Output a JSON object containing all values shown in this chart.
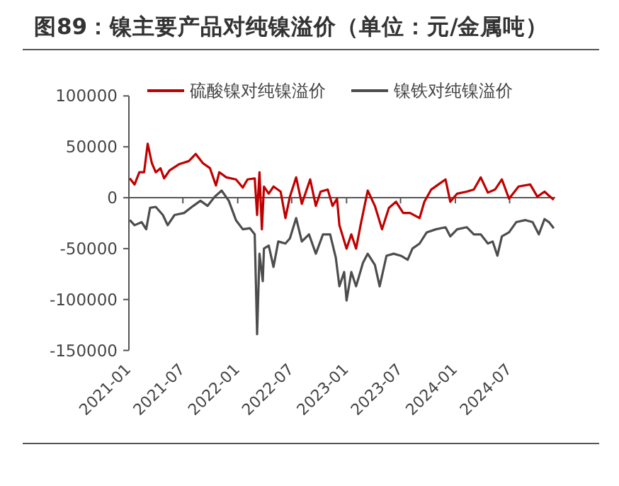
{
  "chart_data": {
    "type": "line",
    "title": "图89：镍主要产品对纯镍溢价（单位：元/金属吨）",
    "series": [
      {
        "name": "硫酸镍对纯镍溢价",
        "color": "#c00000",
        "x": [
          "2021-01-04",
          "2021-01-20",
          "2021-02-05",
          "2021-02-21",
          "2021-03-05",
          "2021-03-19",
          "2021-04-01",
          "2021-04-17",
          "2021-04-29",
          "2021-05-18",
          "2021-06-19",
          "2021-07-21",
          "2021-08-13",
          "2021-09-06",
          "2021-09-30",
          "2021-10-20",
          "2021-10-31",
          "2021-11-24",
          "2021-12-26",
          "2022-01-18",
          "2022-02-03",
          "2022-02-27",
          "2022-03-07",
          "2022-03-15",
          "2022-03-23",
          "2022-03-30",
          "2022-04-15",
          "2022-05-01",
          "2022-05-25",
          "2022-06-10",
          "2022-06-25",
          "2022-07-16",
          "2022-08-04",
          "2022-09-01",
          "2022-09-20",
          "2022-10-06",
          "2022-10-30",
          "2022-11-15",
          "2022-11-30",
          "2022-12-08",
          "2023-01-01",
          "2023-01-17",
          "2023-02-02",
          "2023-02-17",
          "2023-03-13",
          "2023-04-06",
          "2023-04-30",
          "2023-05-23",
          "2023-06-16",
          "2023-07-10",
          "2023-08-02",
          "2023-09-03",
          "2023-09-19",
          "2023-10-12",
          "2023-11-05",
          "2023-11-29",
          "2023-12-15",
          "2024-01-07",
          "2024-02-08",
          "2024-03-03",
          "2024-03-26",
          "2024-04-19",
          "2024-05-13",
          "2024-06-05",
          "2024-06-29",
          "2024-07-31",
          "2024-09-08",
          "2024-10-02",
          "2024-10-26",
          "2024-11-10",
          "2024-11-26"
        ],
        "values": [
          19000,
          13000,
          25000,
          25000,
          53000,
          34000,
          25000,
          29000,
          19000,
          27000,
          33000,
          36000,
          43000,
          34000,
          29000,
          12000,
          25000,
          20000,
          18000,
          10000,
          18000,
          19000,
          -17000,
          25000,
          -31000,
          11000,
          4000,
          11000,
          6000,
          -20000,
          1000,
          20000,
          -6000,
          18000,
          -8000,
          6000,
          8000,
          -8000,
          -1000,
          -27000,
          -50000,
          -36000,
          -50000,
          -27000,
          7000,
          -8000,
          -31000,
          -10000,
          -4000,
          -15000,
          -15000,
          -20000,
          -4000,
          8000,
          13000,
          18000,
          -4000,
          4000,
          6000,
          8000,
          20000,
          5000,
          8000,
          18000,
          -1000,
          11000,
          13000,
          1000,
          6000,
          2000,
          -2000
        ]
      },
      {
        "name": "镍铁对纯镍溢价",
        "color": "#4d4d4d",
        "x": [
          "2021-01-04",
          "2021-01-20",
          "2021-02-13",
          "2021-02-28",
          "2021-03-13",
          "2021-04-01",
          "2021-04-25",
          "2021-05-11",
          "2021-06-03",
          "2021-07-05",
          "2021-08-05",
          "2021-08-29",
          "2021-09-22",
          "2021-10-16",
          "2021-11-08",
          "2021-12-02",
          "2021-12-26",
          "2022-01-18",
          "2022-02-11",
          "2022-02-27",
          "2022-03-07",
          "2022-03-15",
          "2022-03-26",
          "2022-03-30",
          "2022-04-15",
          "2022-05-01",
          "2022-05-17",
          "2022-06-10",
          "2022-06-25",
          "2022-07-16",
          "2022-08-04",
          "2022-08-28",
          "2022-09-20",
          "2022-10-14",
          "2022-11-07",
          "2022-11-26",
          "2022-12-08",
          "2022-12-24",
          "2023-01-01",
          "2023-01-17",
          "2023-02-02",
          "2023-02-25",
          "2023-03-13",
          "2023-04-06",
          "2023-04-22",
          "2023-05-15",
          "2023-06-08",
          "2023-07-02",
          "2023-07-25",
          "2023-08-10",
          "2023-09-03",
          "2023-09-27",
          "2023-10-28",
          "2023-11-29",
          "2023-12-15",
          "2024-01-07",
          "2024-02-08",
          "2024-03-03",
          "2024-03-26",
          "2024-04-19",
          "2024-05-05",
          "2024-05-21",
          "2024-06-05",
          "2024-06-29",
          "2024-07-23",
          "2024-08-23",
          "2024-09-16",
          "2024-10-07",
          "2024-10-26",
          "2024-11-10",
          "2024-11-26"
        ],
        "values": [
          -22000,
          -27000,
          -24000,
          -31000,
          -10000,
          -9000,
          -17000,
          -27000,
          -17000,
          -15000,
          -8000,
          -3000,
          -8000,
          1000,
          7000,
          -3000,
          -22000,
          -31000,
          -30000,
          -36000,
          -134000,
          -55000,
          -82000,
          -50000,
          -47000,
          -68000,
          -43000,
          -45000,
          -40000,
          -20000,
          -43000,
          -36000,
          -55000,
          -36000,
          -36000,
          -59000,
          -87000,
          -73000,
          -101000,
          -73000,
          -87000,
          -64000,
          -55000,
          -66000,
          -87000,
          -57000,
          -55000,
          -57000,
          -61000,
          -50000,
          -45000,
          -34000,
          -31000,
          -29000,
          -38000,
          -31000,
          -29000,
          -36000,
          -36000,
          -45000,
          -43000,
          -57000,
          -38000,
          -34000,
          -24000,
          -22000,
          -24000,
          -36000,
          -21000,
          -24000,
          -30000
        ]
      }
    ],
    "xlim": [
      "2021-01",
      "2024-12"
    ],
    "xticks": [
      "2021-01",
      "2021-07",
      "2022-01",
      "2022-07",
      "2023-01",
      "2023-07",
      "2024-01",
      "2024-07"
    ],
    "ylim": [
      -150000,
      100000
    ],
    "yticks": [
      -150000,
      -100000,
      -50000,
      0,
      50000,
      100000
    ],
    "legend": "top",
    "line_style": "solid",
    "marker": "none"
  }
}
